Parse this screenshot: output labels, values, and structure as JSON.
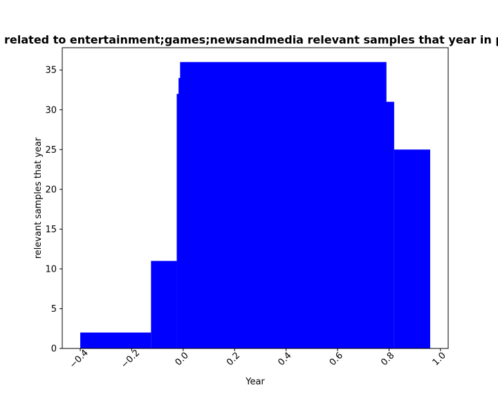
{
  "chart_data": {
    "type": "bar",
    "title": "related to entertainment;games;newsandmedia relevant samples that year in p",
    "xlabel": "Year",
    "ylabel": "relevant samples that year",
    "xlim": [
      -0.47,
      1.03
    ],
    "ylim": [
      0,
      37.8
    ],
    "x_ticks": [
      -0.4,
      -0.2,
      0.0,
      0.2,
      0.4,
      0.6,
      0.8,
      1.0
    ],
    "x_tick_labels": [
      "−0.4",
      "−0.2",
      "0.0",
      "0.2",
      "0.4",
      "0.6",
      "0.8",
      "1.0"
    ],
    "y_ticks": [
      0,
      5,
      10,
      15,
      20,
      25,
      30,
      35
    ],
    "y_tick_labels": [
      "0",
      "5",
      "10",
      "15",
      "20",
      "25",
      "30",
      "35"
    ],
    "bar_color": "#0000ff",
    "grid": false,
    "bars": [
      {
        "x0": -0.4,
        "x1": -0.125,
        "value": 2
      },
      {
        "x0": -0.125,
        "x1": -0.025,
        "value": 11
      },
      {
        "x0": -0.025,
        "x1": 0.02,
        "value": 32
      },
      {
        "x0": -0.018,
        "x1": 0.03,
        "value": 34
      },
      {
        "x0": -0.012,
        "x1": 0.79,
        "value": 36
      },
      {
        "x0": 0.78,
        "x1": 0.82,
        "value": 31
      },
      {
        "x0": 0.82,
        "x1": 0.96,
        "value": 25
      }
    ]
  }
}
